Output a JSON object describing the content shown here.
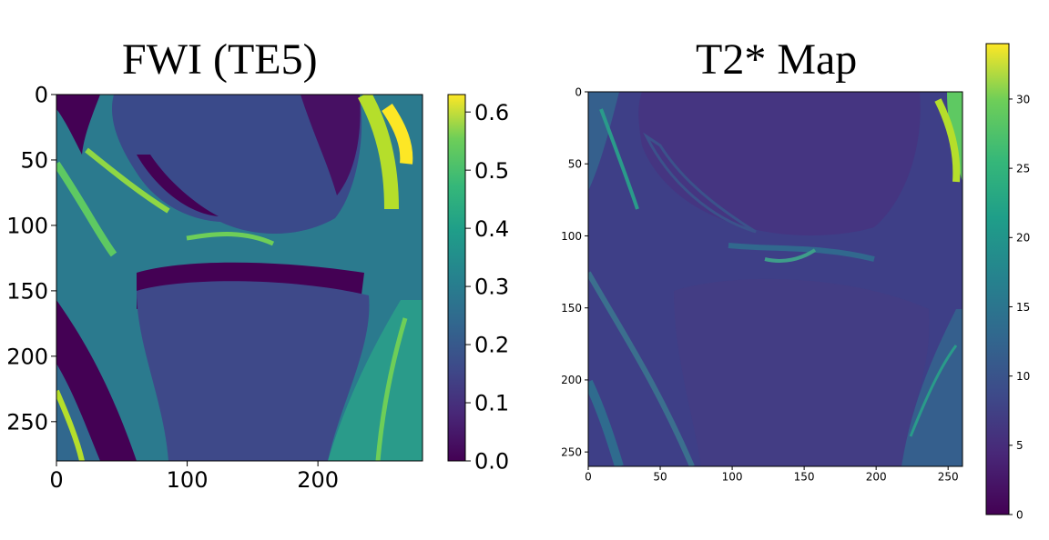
{
  "panels": [
    {
      "title": "FWI (TE5)",
      "chart_data": {
        "type": "heatmap",
        "colormap": "viridis",
        "image_extent": {
          "x": [
            0,
            280
          ],
          "y": [
            0,
            280
          ]
        },
        "xticks": [
          0,
          100,
          200
        ],
        "yticks": [
          0,
          50,
          100,
          150,
          200,
          250
        ],
        "xtick_labels": [
          "0",
          "100",
          "200"
        ],
        "ytick_labels": [
          "0",
          "50",
          "100",
          "150",
          "200",
          "250"
        ],
        "colorbar": {
          "range": [
            0.0,
            0.63
          ],
          "ticks": [
            0.0,
            0.1,
            0.2,
            0.3,
            0.4,
            0.5,
            0.6
          ],
          "tick_labels": [
            "0.0",
            "0.1",
            "0.2",
            "0.3",
            "0.4",
            "0.5",
            "0.6"
          ]
        }
      }
    },
    {
      "title": "T2* Map",
      "chart_data": {
        "type": "heatmap",
        "colormap": "viridis",
        "image_extent": {
          "x": [
            0,
            260
          ],
          "y": [
            0,
            260
          ]
        },
        "xticks": [
          0,
          50,
          100,
          150,
          200,
          250
        ],
        "yticks": [
          0,
          50,
          100,
          150,
          200,
          250
        ],
        "xtick_labels": [
          "0",
          "50",
          "100",
          "150",
          "200",
          "250"
        ],
        "ytick_labels": [
          "0",
          "50",
          "100",
          "150",
          "200",
          "250"
        ],
        "colorbar": {
          "range": [
            0,
            34
          ],
          "ticks": [
            0,
            5,
            10,
            15,
            20,
            25,
            30
          ],
          "tick_labels": [
            "0",
            "5",
            "10",
            "15",
            "20",
            "25",
            "30"
          ]
        }
      }
    }
  ],
  "colors": {
    "viridis_0": "#440154",
    "viridis_25": "#3b528b",
    "viridis_50": "#21918c",
    "viridis_75": "#5ec962",
    "viridis_100": "#fde725"
  }
}
